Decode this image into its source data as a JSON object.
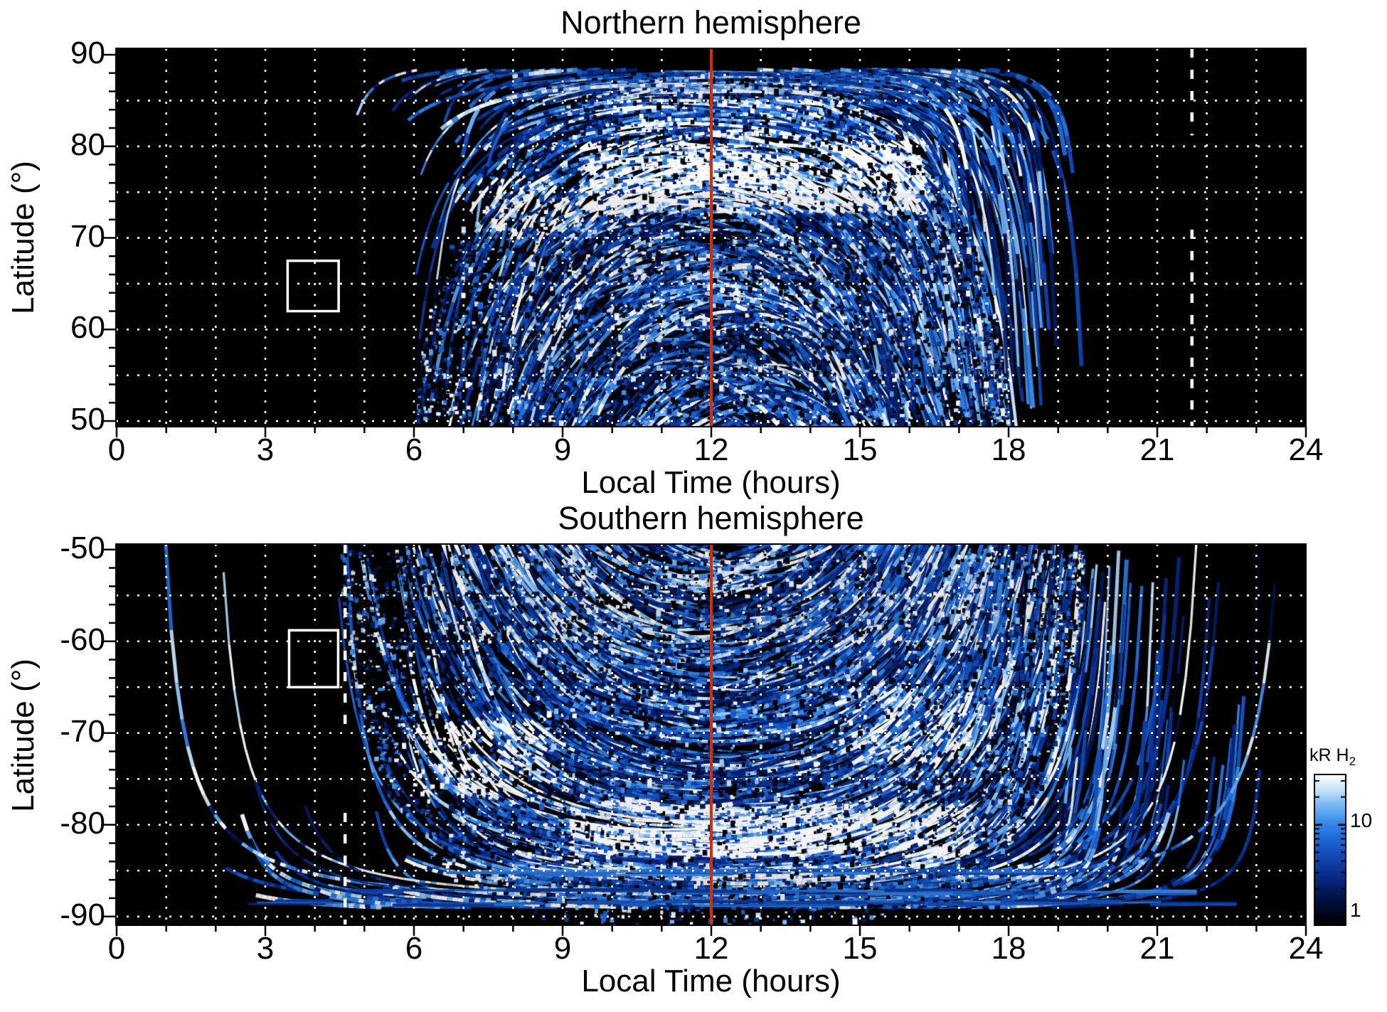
{
  "colorbar": {
    "label_main": "kR H",
    "label_sub": "2",
    "tick_top": "10",
    "tick_bottom": "1",
    "scale": "log",
    "unit": "kR H2",
    "labeled_tick_values": [
      10,
      1
    ],
    "approx_value_range": [
      0.8,
      34
    ]
  },
  "chart_data": [
    {
      "type": "heatmap",
      "id": "north",
      "title": "Northern hemisphere",
      "xlabel": "Local Time (hours)",
      "ylabel": "Latitude (°)",
      "x_range": [
        0,
        24
      ],
      "x_major_ticks": [
        0,
        3,
        6,
        9,
        12,
        15,
        18,
        21,
        24
      ],
      "x_minor_step": 1,
      "y_range": [
        50,
        90
      ],
      "y_major_ticks": [
        90,
        80,
        70,
        60,
        50
      ],
      "y_minor_step": 2,
      "grid_lats": [
        85,
        80,
        75,
        70,
        65,
        60,
        55,
        50
      ],
      "grid_style": "white dotted, every 1 h and 5 deg",
      "annotations": {
        "red_vertical_line_lt": 12,
        "white_dashed_line_lt": 21.7,
        "white_dashed_segments_lat": [
          [
            90.7,
            81.2
          ],
          [
            70.9,
            49.4
          ]
        ],
        "white_box": {
          "lt": [
            3.45,
            4.48
          ],
          "lat": [
            67.5,
            62.0
          ]
        }
      },
      "emission": {
        "local_time_extent": [
          6.3,
          17.9
        ],
        "lat_extent": [
          50,
          88.5
        ],
        "description": "Fan of thin auroral swath arcs converging toward the pole near LT 12; brightest white band 72-80 deg between LT 9.4-16.4 and 72-77 deg at LT 7-9; mottled blue speckle 50-72 deg."
      },
      "render": {
        "seed": 420042,
        "swaths": 470,
        "speckles": 4300,
        "wall_hw": 5.85,
        "lt0_spread": 2.4,
        "low_d_extra": 0.7,
        "min_colat": 1.6,
        "env_hw": 5.95,
        "env_pow": 2.4,
        "env_depth": 38.5,
        "bright_bands": [
          [
            71,
            74.5,
            7.0,
            9.4,
            2.4
          ],
          [
            72,
            77,
            6.9,
            8.9,
            2.1
          ],
          [
            72.5,
            80.5,
            9.4,
            16.4,
            2.8
          ],
          [
            80,
            86,
            10.2,
            14.3,
            1.5
          ],
          [
            60,
            70,
            10,
            15,
            1.15
          ]
        ],
        "polar_rows": []
      }
    },
    {
      "type": "heatmap",
      "id": "south",
      "title": "Southern hemisphere",
      "xlabel": "Local Time (hours)",
      "ylabel": "Latitude (°)",
      "x_range": [
        0,
        24
      ],
      "x_major_ticks": [
        0,
        3,
        6,
        9,
        12,
        15,
        18,
        21,
        24
      ],
      "x_minor_step": 1,
      "y_range": [
        -90,
        -50
      ],
      "y_major_ticks": [
        -50,
        -60,
        -70,
        -80,
        -90
      ],
      "y_minor_step": 2,
      "grid_lats": [
        -55,
        -60,
        -65,
        -70,
        -75,
        -80,
        -85,
        -90
      ],
      "grid_style": "white dotted, every 1 h and 5 deg",
      "annotations": {
        "red_vertical_line_lt": 12,
        "white_dashed_line_lt": 4.61,
        "white_dashed_segments_lat": [
          [
            -49.4,
            -69.5
          ],
          [
            -78.7,
            -91.0
          ]
        ],
        "white_box": {
          "lt": [
            3.48,
            4.47
          ],
          "lat": [
            -58.8,
            -65.0
          ]
        }
      },
      "emission": {
        "local_time_extent": [
          4.6,
          19.2
        ],
        "lat_extent": [
          -50,
          -89
        ],
        "description": "Dense fan of swath arcs converging toward the pole at bottom near LT 12; bright arcs -69 to -77 deg at LT 6-8.5 and -77 to -83 deg at LT 9-17.5; long thin horizontal streaks near -85 and -88.5 deg extending LT 1.5-22.6.",
        "polar_streak_rows": [
          {
            "lat": -85.2,
            "lt": [
              4.5,
              19.6
            ]
          },
          {
            "lat": -87.3,
            "lt": [
              2.2,
              21.8
            ]
          },
          {
            "lat": -88.6,
            "lt": [
              1.5,
              22.6
            ]
          }
        ]
      },
      "render": {
        "seed": 777013,
        "swaths": 560,
        "speckles": 5400,
        "wall_hw": 7.3,
        "lt0_spread": 2.0,
        "low_d_extra": 3.6,
        "min_colat": 1.0,
        "env_hw": 7.5,
        "env_pow": 4.0,
        "env_depth": 41,
        "bright_bands": [
          [
            -77,
            -69,
            5.9,
            8.7,
            2.3
          ],
          [
            -83.5,
            -77.5,
            9.2,
            17.4,
            2.3
          ],
          [
            -73,
            -65,
            14.6,
            17.6,
            1.6
          ],
          [
            -60,
            -50,
            6,
            18,
            1.2
          ],
          [
            -86,
            -84,
            4.8,
            19.4,
            1.5
          ]
        ],
        "polar_rows": [
          [
            -85.2,
            4.5,
            19.6,
            26
          ],
          [
            -87.3,
            2.2,
            21.8,
            22
          ],
          [
            -88.6,
            1.5,
            22.6,
            30
          ]
        ]
      }
    }
  ]
}
